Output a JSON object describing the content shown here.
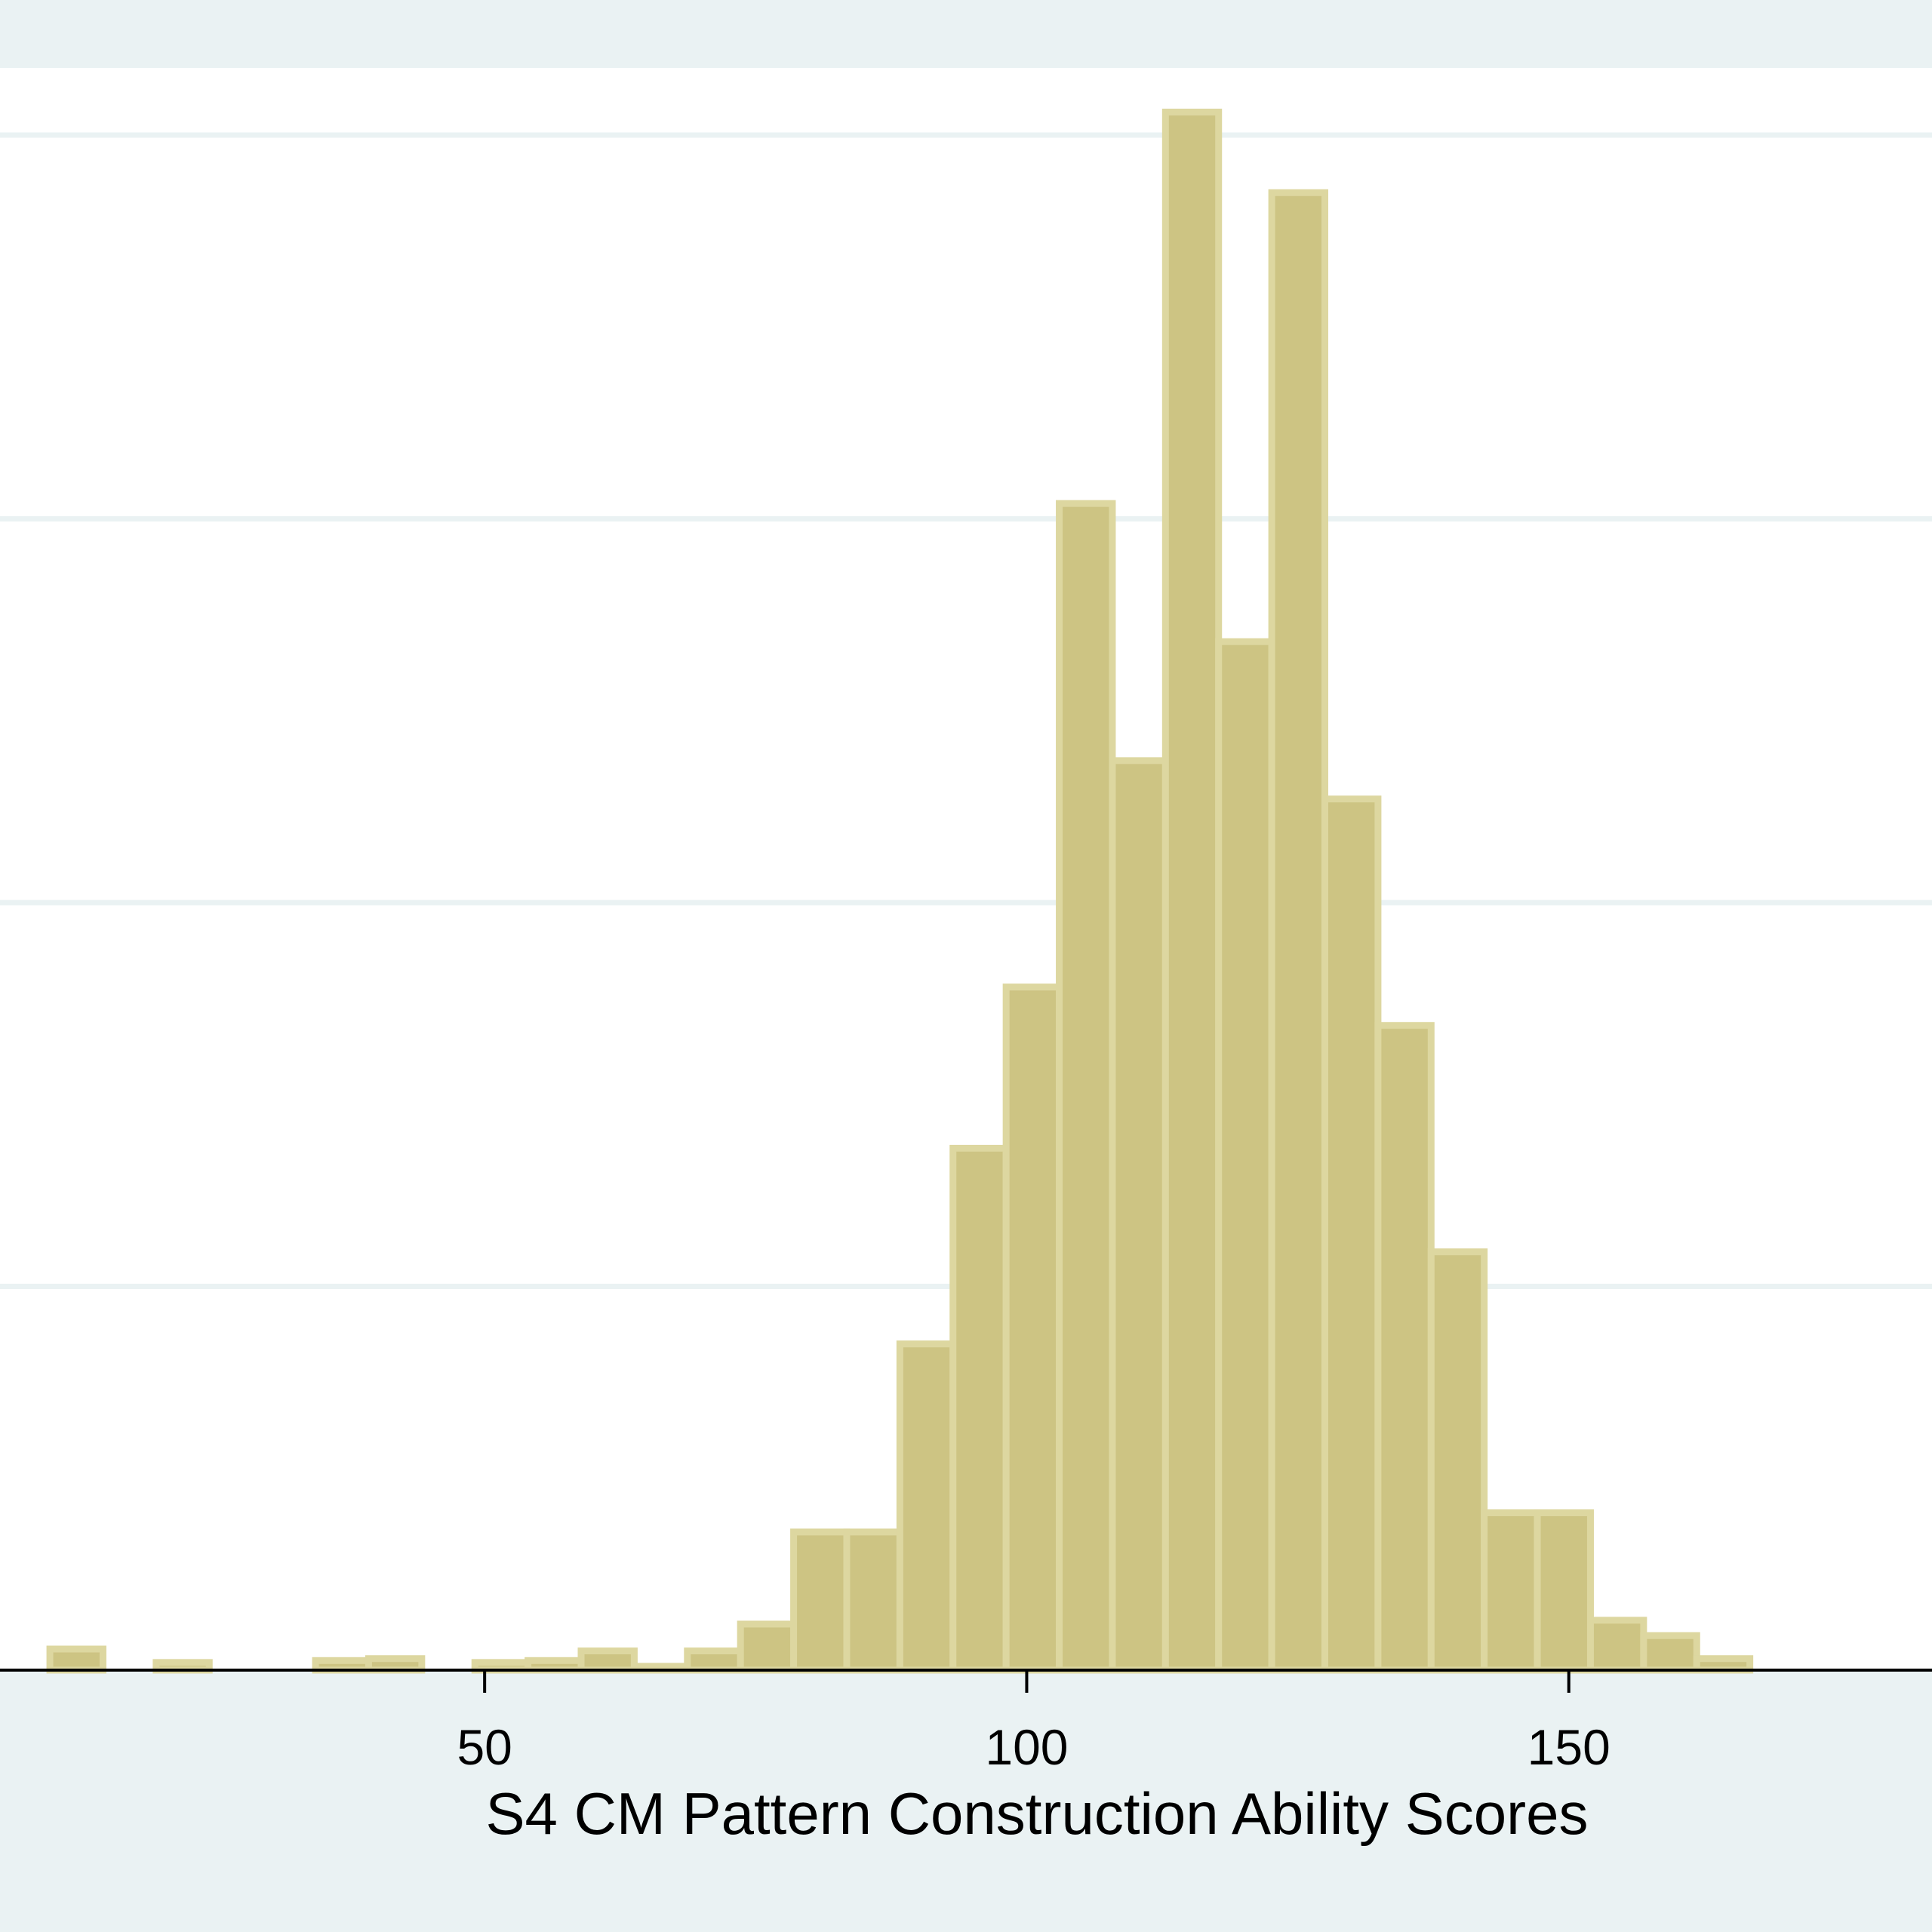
{
  "chart_data": {
    "type": "bar",
    "subtype": "histogram",
    "title": "",
    "xlabel": "S4 CM Pattern Construction Ability Scores",
    "ylabel": "",
    "x_ticks": [
      50,
      100,
      150
    ],
    "xlim": [
      5.3,
      183.5
    ],
    "ylim": [
      0,
      0.04
    ],
    "y_gridlines": [
      0.01,
      0.02,
      0.03,
      0.04
    ],
    "y_tick_labels_visible": false,
    "grid": true,
    "bin_width": 4.9,
    "bins": [
      {
        "x0": 9.9,
        "x1": 14.8,
        "value": 0.00055
      },
      {
        "x0": 19.7,
        "x1": 24.6,
        "value": 0.0002
      },
      {
        "x0": 34.4,
        "x1": 39.3,
        "value": 0.00025
      },
      {
        "x0": 39.3,
        "x1": 44.2,
        "value": 0.0003
      },
      {
        "x0": 49.1,
        "x1": 54.0,
        "value": 0.0002
      },
      {
        "x0": 54.0,
        "x1": 58.9,
        "value": 0.00025
      },
      {
        "x0": 58.9,
        "x1": 63.8,
        "value": 0.0005
      },
      {
        "x0": 63.8,
        "x1": 68.7,
        "value": 0.0001
      },
      {
        "x0": 68.7,
        "x1": 73.6,
        "value": 0.0005
      },
      {
        "x0": 73.6,
        "x1": 78.5,
        "value": 0.0012
      },
      {
        "x0": 78.5,
        "x1": 83.4,
        "value": 0.0036
      },
      {
        "x0": 83.4,
        "x1": 88.3,
        "value": 0.0036
      },
      {
        "x0": 88.3,
        "x1": 93.2,
        "value": 0.0085
      },
      {
        "x0": 93.2,
        "x1": 98.1,
        "value": 0.0136
      },
      {
        "x0": 98.1,
        "x1": 103.0,
        "value": 0.0178
      },
      {
        "x0": 103.0,
        "x1": 107.9,
        "value": 0.0304
      },
      {
        "x0": 107.9,
        "x1": 112.8,
        "value": 0.0237
      },
      {
        "x0": 112.8,
        "x1": 117.7,
        "value": 0.0406
      },
      {
        "x0": 117.7,
        "x1": 122.6,
        "value": 0.0268
      },
      {
        "x0": 122.6,
        "x1": 127.5,
        "value": 0.0385
      },
      {
        "x0": 127.5,
        "x1": 132.4,
        "value": 0.0227
      },
      {
        "x0": 132.4,
        "x1": 137.3,
        "value": 0.0168
      },
      {
        "x0": 137.3,
        "x1": 142.2,
        "value": 0.0109
      },
      {
        "x0": 142.2,
        "x1": 147.1,
        "value": 0.0041
      },
      {
        "x0": 147.1,
        "x1": 152.0,
        "value": 0.0041
      },
      {
        "x0": 152.0,
        "x1": 156.9,
        "value": 0.0013
      },
      {
        "x0": 156.9,
        "x1": 161.8,
        "value": 0.0009
      },
      {
        "x0": 161.8,
        "x1": 166.7,
        "value": 0.0003
      }
    ],
    "colors": {
      "bar_fill": "#cdc483",
      "bar_outline": "#ddd7a0",
      "plot_background": "#ffffff",
      "outer_background": "#eaf2f3",
      "gridline": "#eaf2f3",
      "axis": "#000000"
    }
  }
}
